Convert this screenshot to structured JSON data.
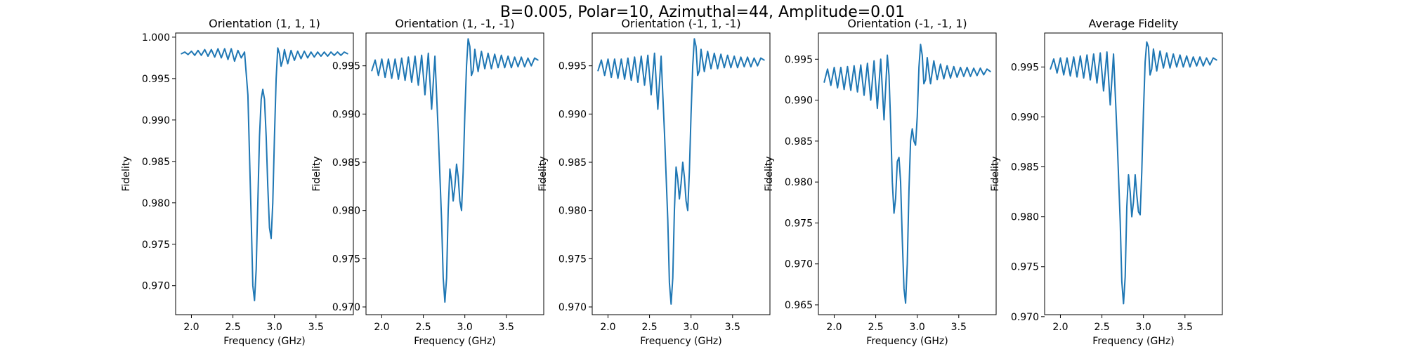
{
  "figure": {
    "suptitle": "B=0.005, Polar=10, Azimuthal=44, Amplitude=0.01",
    "line_color": "#1f77b4"
  },
  "chart_data": [
    {
      "type": "line",
      "title": "Orientation (1, 1, 1)",
      "xlabel": "Frequency (GHz)",
      "ylabel": "Fidelity",
      "xlim": [
        1.81,
        3.95
      ],
      "ylim": [
        0.9665,
        1.0005
      ],
      "xticks": [
        "2.0",
        "2.5",
        "3.0",
        "3.5"
      ],
      "yticks": [
        "0.970",
        "0.975",
        "0.980",
        "0.985",
        "0.990",
        "0.995",
        "1.000"
      ],
      "grid": false,
      "series": [
        {
          "x": [
            1.88,
            1.92,
            1.96,
            2.0,
            2.04,
            2.08,
            2.12,
            2.16,
            2.2,
            2.24,
            2.28,
            2.32,
            2.36,
            2.4,
            2.44,
            2.48,
            2.52,
            2.56,
            2.6,
            2.64,
            2.68,
            2.72,
            2.74,
            2.76,
            2.78,
            2.8,
            2.82,
            2.84,
            2.86,
            2.88,
            2.9,
            2.92,
            2.94,
            2.96,
            2.98,
            3.0,
            3.02,
            3.04,
            3.06,
            3.08,
            3.1,
            3.12,
            3.14,
            3.16,
            3.2,
            3.24,
            3.28,
            3.32,
            3.36,
            3.4,
            3.44,
            3.48,
            3.52,
            3.56,
            3.6,
            3.64,
            3.68,
            3.72,
            3.76,
            3.8,
            3.84,
            3.88
          ],
          "y": [
            0.998,
            0.9982,
            0.9979,
            0.9983,
            0.9978,
            0.9984,
            0.9978,
            0.9985,
            0.9977,
            0.9985,
            0.9976,
            0.9986,
            0.9975,
            0.9986,
            0.9973,
            0.9986,
            0.9971,
            0.9984,
            0.9975,
            0.9982,
            0.993,
            0.978,
            0.97,
            0.9682,
            0.972,
            0.98,
            0.988,
            0.9925,
            0.9937,
            0.9925,
            0.988,
            0.982,
            0.977,
            0.9757,
            0.98,
            0.988,
            0.995,
            0.9987,
            0.998,
            0.9965,
            0.9972,
            0.9985,
            0.9976,
            0.9968,
            0.9984,
            0.9972,
            0.9983,
            0.9974,
            0.9983,
            0.9975,
            0.9982,
            0.9976,
            0.9982,
            0.9977,
            0.9982,
            0.9977,
            0.9982,
            0.9978,
            0.9982,
            0.9978,
            0.9982,
            0.998
          ]
        }
      ]
    },
    {
      "type": "line",
      "title": "Orientation (1, -1, -1)",
      "xlabel": "Frequency (GHz)",
      "ylabel": "Fidelity",
      "xlim": [
        1.81,
        3.95
      ],
      "ylim": [
        0.9692,
        0.9984
      ],
      "xticks": [
        "2.0",
        "2.5",
        "3.0",
        "3.5"
      ],
      "yticks": [
        "0.970",
        "0.975",
        "0.980",
        "0.985",
        "0.990",
        "0.995"
      ],
      "grid": false,
      "series": [
        {
          "x": [
            1.88,
            1.92,
            1.96,
            2.0,
            2.04,
            2.08,
            2.12,
            2.16,
            2.2,
            2.24,
            2.28,
            2.32,
            2.36,
            2.4,
            2.44,
            2.48,
            2.52,
            2.56,
            2.6,
            2.64,
            2.68,
            2.72,
            2.74,
            2.76,
            2.78,
            2.8,
            2.82,
            2.84,
            2.86,
            2.88,
            2.9,
            2.92,
            2.94,
            2.96,
            2.98,
            3.0,
            3.02,
            3.04,
            3.06,
            3.08,
            3.1,
            3.12,
            3.14,
            3.16,
            3.2,
            3.24,
            3.28,
            3.32,
            3.36,
            3.4,
            3.44,
            3.48,
            3.52,
            3.56,
            3.6,
            3.64,
            3.68,
            3.72,
            3.76,
            3.8,
            3.84,
            3.88
          ],
          "y": [
            0.9945,
            0.9956,
            0.994,
            0.9957,
            0.9938,
            0.9957,
            0.9937,
            0.9957,
            0.9936,
            0.9958,
            0.9935,
            0.9959,
            0.9933,
            0.996,
            0.993,
            0.9961,
            0.992,
            0.9963,
            0.9905,
            0.996,
            0.988,
            0.979,
            0.973,
            0.9705,
            0.973,
            0.98,
            0.9843,
            0.983,
            0.981,
            0.9825,
            0.9848,
            0.9835,
            0.981,
            0.98,
            0.984,
            0.99,
            0.995,
            0.9978,
            0.997,
            0.994,
            0.9945,
            0.9967,
            0.9955,
            0.9944,
            0.9965,
            0.9947,
            0.9963,
            0.9947,
            0.9962,
            0.9948,
            0.9961,
            0.9948,
            0.996,
            0.9948,
            0.9959,
            0.9949,
            0.9959,
            0.9949,
            0.9958,
            0.995,
            0.9958,
            0.9956
          ]
        }
      ]
    },
    {
      "type": "line",
      "title": "Orientation (-1, 1, -1)",
      "xlabel": "Frequency (GHz)",
      "ylabel": "Fidelity",
      "xlim": [
        1.81,
        3.95
      ],
      "ylim": [
        0.9692,
        0.9984
      ],
      "xticks": [
        "2.0",
        "2.5",
        "3.0",
        "3.5"
      ],
      "yticks": [
        "0.970",
        "0.975",
        "0.980",
        "0.985",
        "0.990",
        "0.995"
      ],
      "grid": false,
      "series": [
        {
          "x": [
            1.88,
            1.92,
            1.96,
            2.0,
            2.04,
            2.08,
            2.12,
            2.16,
            2.2,
            2.24,
            2.28,
            2.32,
            2.36,
            2.4,
            2.44,
            2.48,
            2.52,
            2.56,
            2.6,
            2.64,
            2.68,
            2.72,
            2.74,
            2.76,
            2.78,
            2.8,
            2.82,
            2.84,
            2.86,
            2.88,
            2.9,
            2.92,
            2.94,
            2.96,
            2.98,
            3.0,
            3.02,
            3.04,
            3.06,
            3.08,
            3.1,
            3.12,
            3.14,
            3.16,
            3.2,
            3.24,
            3.28,
            3.32,
            3.36,
            3.4,
            3.44,
            3.48,
            3.52,
            3.56,
            3.6,
            3.64,
            3.68,
            3.72,
            3.76,
            3.8,
            3.84,
            3.88
          ],
          "y": [
            0.9945,
            0.9956,
            0.994,
            0.9957,
            0.9938,
            0.9957,
            0.9937,
            0.9957,
            0.9936,
            0.9958,
            0.9935,
            0.9959,
            0.9933,
            0.996,
            0.993,
            0.9961,
            0.992,
            0.9963,
            0.9905,
            0.996,
            0.988,
            0.979,
            0.9725,
            0.9703,
            0.973,
            0.98,
            0.9845,
            0.9832,
            0.9812,
            0.9828,
            0.985,
            0.9835,
            0.981,
            0.98,
            0.984,
            0.99,
            0.995,
            0.9978,
            0.997,
            0.994,
            0.9945,
            0.9967,
            0.9955,
            0.9944,
            0.9965,
            0.9947,
            0.9963,
            0.9947,
            0.9962,
            0.9948,
            0.9961,
            0.9948,
            0.996,
            0.9948,
            0.9959,
            0.9949,
            0.9959,
            0.9949,
            0.9958,
            0.995,
            0.9958,
            0.9956
          ]
        }
      ]
    },
    {
      "type": "line",
      "title": "Orientation (-1, -1, 1)",
      "xlabel": "Frequency (GHz)",
      "ylabel": "Fidelity",
      "xlim": [
        1.81,
        3.95
      ],
      "ylim": [
        0.9638,
        0.9982
      ],
      "xticks": [
        "2.0",
        "2.5",
        "3.0",
        "3.5"
      ],
      "yticks": [
        "0.965",
        "0.970",
        "0.975",
        "0.980",
        "0.985",
        "0.990",
        "0.995"
      ],
      "grid": false,
      "series": [
        {
          "x": [
            1.88,
            1.92,
            1.96,
            2.0,
            2.04,
            2.08,
            2.12,
            2.16,
            2.2,
            2.24,
            2.28,
            2.32,
            2.36,
            2.4,
            2.44,
            2.48,
            2.52,
            2.56,
            2.6,
            2.64,
            2.66,
            2.68,
            2.7,
            2.72,
            2.74,
            2.76,
            2.78,
            2.8,
            2.82,
            2.84,
            2.86,
            2.88,
            2.9,
            2.92,
            2.94,
            2.96,
            2.98,
            3.0,
            3.02,
            3.04,
            3.06,
            3.08,
            3.1,
            3.12,
            3.14,
            3.16,
            3.2,
            3.24,
            3.28,
            3.32,
            3.36,
            3.4,
            3.44,
            3.48,
            3.52,
            3.56,
            3.6,
            3.64,
            3.68,
            3.72,
            3.76,
            3.8,
            3.84,
            3.88
          ],
          "y": [
            0.9922,
            0.9938,
            0.9918,
            0.994,
            0.9915,
            0.994,
            0.9913,
            0.9941,
            0.9912,
            0.9942,
            0.991,
            0.9943,
            0.9906,
            0.9945,
            0.99,
            0.9948,
            0.989,
            0.995,
            0.9876,
            0.9955,
            0.993,
            0.987,
            0.98,
            0.9762,
            0.978,
            0.9825,
            0.983,
            0.98,
            0.973,
            0.967,
            0.9652,
            0.97,
            0.979,
            0.985,
            0.9865,
            0.985,
            0.9845,
            0.988,
            0.994,
            0.9968,
            0.9955,
            0.992,
            0.9925,
            0.9952,
            0.9935,
            0.992,
            0.9948,
            0.9925,
            0.9944,
            0.9926,
            0.9942,
            0.9927,
            0.9941,
            0.9928,
            0.994,
            0.9929,
            0.994,
            0.9929,
            0.9939,
            0.993,
            0.9939,
            0.9931,
            0.9938,
            0.9935
          ]
        }
      ]
    },
    {
      "type": "line",
      "title": "Average Fidelity",
      "xlabel": "Frequency (GHz)",
      "ylabel": "Fidelity",
      "xlim": [
        1.81,
        3.95
      ],
      "ylim": [
        0.9702,
        0.9984
      ],
      "xticks": [
        "2.0",
        "2.5",
        "3.0",
        "3.5"
      ],
      "yticks": [
        "0.970",
        "0.975",
        "0.980",
        "0.985",
        "0.990",
        "0.995"
      ],
      "grid": false,
      "series": [
        {
          "x": [
            1.88,
            1.92,
            1.96,
            2.0,
            2.04,
            2.08,
            2.12,
            2.16,
            2.2,
            2.24,
            2.28,
            2.32,
            2.36,
            2.4,
            2.44,
            2.48,
            2.52,
            2.56,
            2.6,
            2.64,
            2.68,
            2.72,
            2.74,
            2.76,
            2.78,
            2.8,
            2.82,
            2.84,
            2.86,
            2.88,
            2.9,
            2.92,
            2.94,
            2.96,
            2.98,
            3.0,
            3.02,
            3.04,
            3.06,
            3.08,
            3.1,
            3.12,
            3.14,
            3.16,
            3.2,
            3.24,
            3.28,
            3.32,
            3.36,
            3.4,
            3.44,
            3.48,
            3.52,
            3.56,
            3.6,
            3.64,
            3.68,
            3.72,
            3.76,
            3.8,
            3.84,
            3.88
          ],
          "y": [
            0.9948,
            0.9958,
            0.9944,
            0.9959,
            0.9942,
            0.9959,
            0.9941,
            0.996,
            0.994,
            0.9961,
            0.9939,
            0.9962,
            0.9937,
            0.9963,
            0.9934,
            0.9964,
            0.9926,
            0.9965,
            0.9912,
            0.9963,
            0.9885,
            0.9795,
            0.9735,
            0.9713,
            0.974,
            0.981,
            0.9842,
            0.9825,
            0.98,
            0.9815,
            0.9842,
            0.9822,
            0.9805,
            0.9802,
            0.9845,
            0.9905,
            0.9955,
            0.9975,
            0.997,
            0.9942,
            0.9948,
            0.9968,
            0.9957,
            0.9946,
            0.9966,
            0.9949,
            0.9964,
            0.9949,
            0.9963,
            0.995,
            0.9962,
            0.995,
            0.9961,
            0.995,
            0.996,
            0.9951,
            0.996,
            0.9951,
            0.9959,
            0.9952,
            0.9959,
            0.9957
          ]
        }
      ]
    }
  ]
}
